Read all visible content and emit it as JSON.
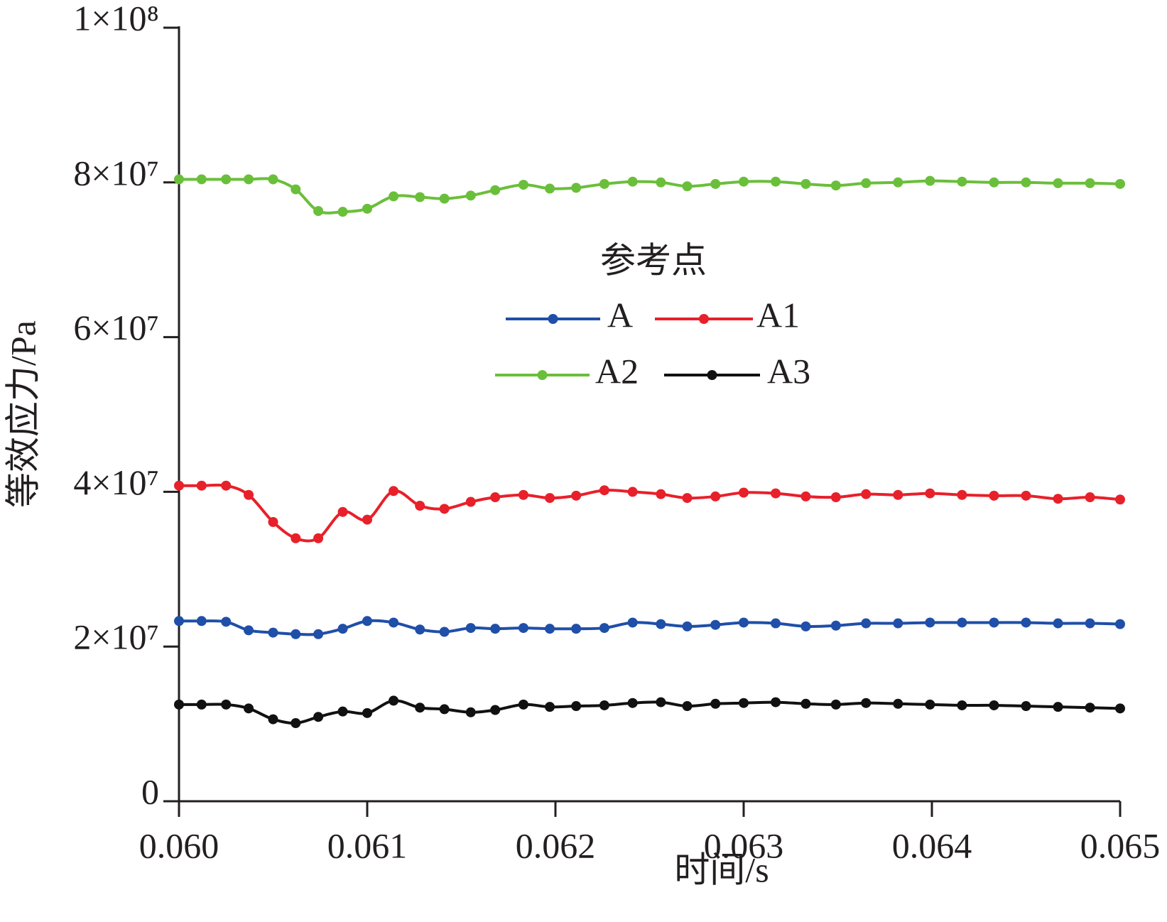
{
  "chart_data": {
    "type": "line",
    "xlabel": "时间/s",
    "ylabel": "等效应力/Pa",
    "legend_title": "参考点",
    "legend_position": "center",
    "x": [
      0.06,
      0.06012,
      0.06025,
      0.06037,
      0.0605,
      0.06062,
      0.06074,
      0.06087,
      0.061,
      0.06114,
      0.06128,
      0.06141,
      0.06155,
      0.06168,
      0.06183,
      0.06197,
      0.06211,
      0.06226,
      0.06241,
      0.06256,
      0.0627,
      0.06285,
      0.063,
      0.06317,
      0.06333,
      0.06349,
      0.06365,
      0.06382,
      0.06399,
      0.06416,
      0.06433,
      0.0645,
      0.06467,
      0.06484,
      0.065
    ],
    "series": [
      {
        "name": "A",
        "color": "#1f4fa8",
        "values": [
          23300000,
          23300000,
          23200000,
          22100000,
          21800000,
          21600000,
          21600000,
          22300000,
          23300000,
          23100000,
          22200000,
          21900000,
          22400000,
          22300000,
          22400000,
          22300000,
          22300000,
          22400000,
          23100000,
          22900000,
          22600000,
          22800000,
          23100000,
          23000000,
          22600000,
          22700000,
          23000000,
          23000000,
          23100000,
          23100000,
          23100000,
          23100000,
          23000000,
          23000000,
          22900000
        ]
      },
      {
        "name": "A1",
        "color": "#e8202a",
        "values": [
          40800000,
          40800000,
          40800000,
          39600000,
          36100000,
          34000000,
          34000000,
          37400000,
          36400000,
          40100000,
          38200000,
          37800000,
          38700000,
          39300000,
          39600000,
          39200000,
          39500000,
          40200000,
          40000000,
          39700000,
          39200000,
          39400000,
          39900000,
          39800000,
          39400000,
          39300000,
          39700000,
          39600000,
          39800000,
          39600000,
          39500000,
          39500000,
          39100000,
          39300000,
          39000000
        ]
      },
      {
        "name": "A2",
        "color": "#6abf3a",
        "values": [
          80400000,
          80400000,
          80400000,
          80400000,
          80400000,
          79100000,
          76300000,
          76200000,
          76600000,
          78200000,
          78100000,
          77900000,
          78300000,
          79000000,
          79700000,
          79200000,
          79300000,
          79800000,
          80100000,
          80000000,
          79500000,
          79800000,
          80100000,
          80100000,
          79800000,
          79600000,
          79900000,
          80000000,
          80200000,
          80100000,
          80000000,
          80000000,
          79900000,
          79900000,
          79800000
        ]
      },
      {
        "name": "A3",
        "color": "#111111",
        "values": [
          12500000,
          12500000,
          12500000,
          12000000,
          10600000,
          10100000,
          10900000,
          11600000,
          11400000,
          13000000,
          12100000,
          11900000,
          11500000,
          11800000,
          12500000,
          12200000,
          12300000,
          12400000,
          12700000,
          12800000,
          12300000,
          12600000,
          12700000,
          12800000,
          12600000,
          12500000,
          12700000,
          12600000,
          12500000,
          12400000,
          12400000,
          12300000,
          12200000,
          12100000,
          12000000
        ]
      }
    ],
    "xlim": [
      0.06,
      0.065
    ],
    "xticks": [
      {
        "value": 0.06,
        "label": "0.060"
      },
      0.061,
      0.062,
      0.063,
      0.064,
      0.065
    ],
    "ylim": [
      0,
      100000000
    ],
    "yticks": [
      0,
      {
        "value": 20000000,
        "label": "2×10⁷"
      },
      {
        "value": 40000000,
        "label": "4×10⁷"
      },
      {
        "value": 60000000,
        "label": "6×10⁷"
      },
      {
        "value": 80000000,
        "label": "8×10⁷"
      },
      {
        "value": 100000000,
        "label": "1×10⁸"
      }
    ],
    "grid": false
  }
}
